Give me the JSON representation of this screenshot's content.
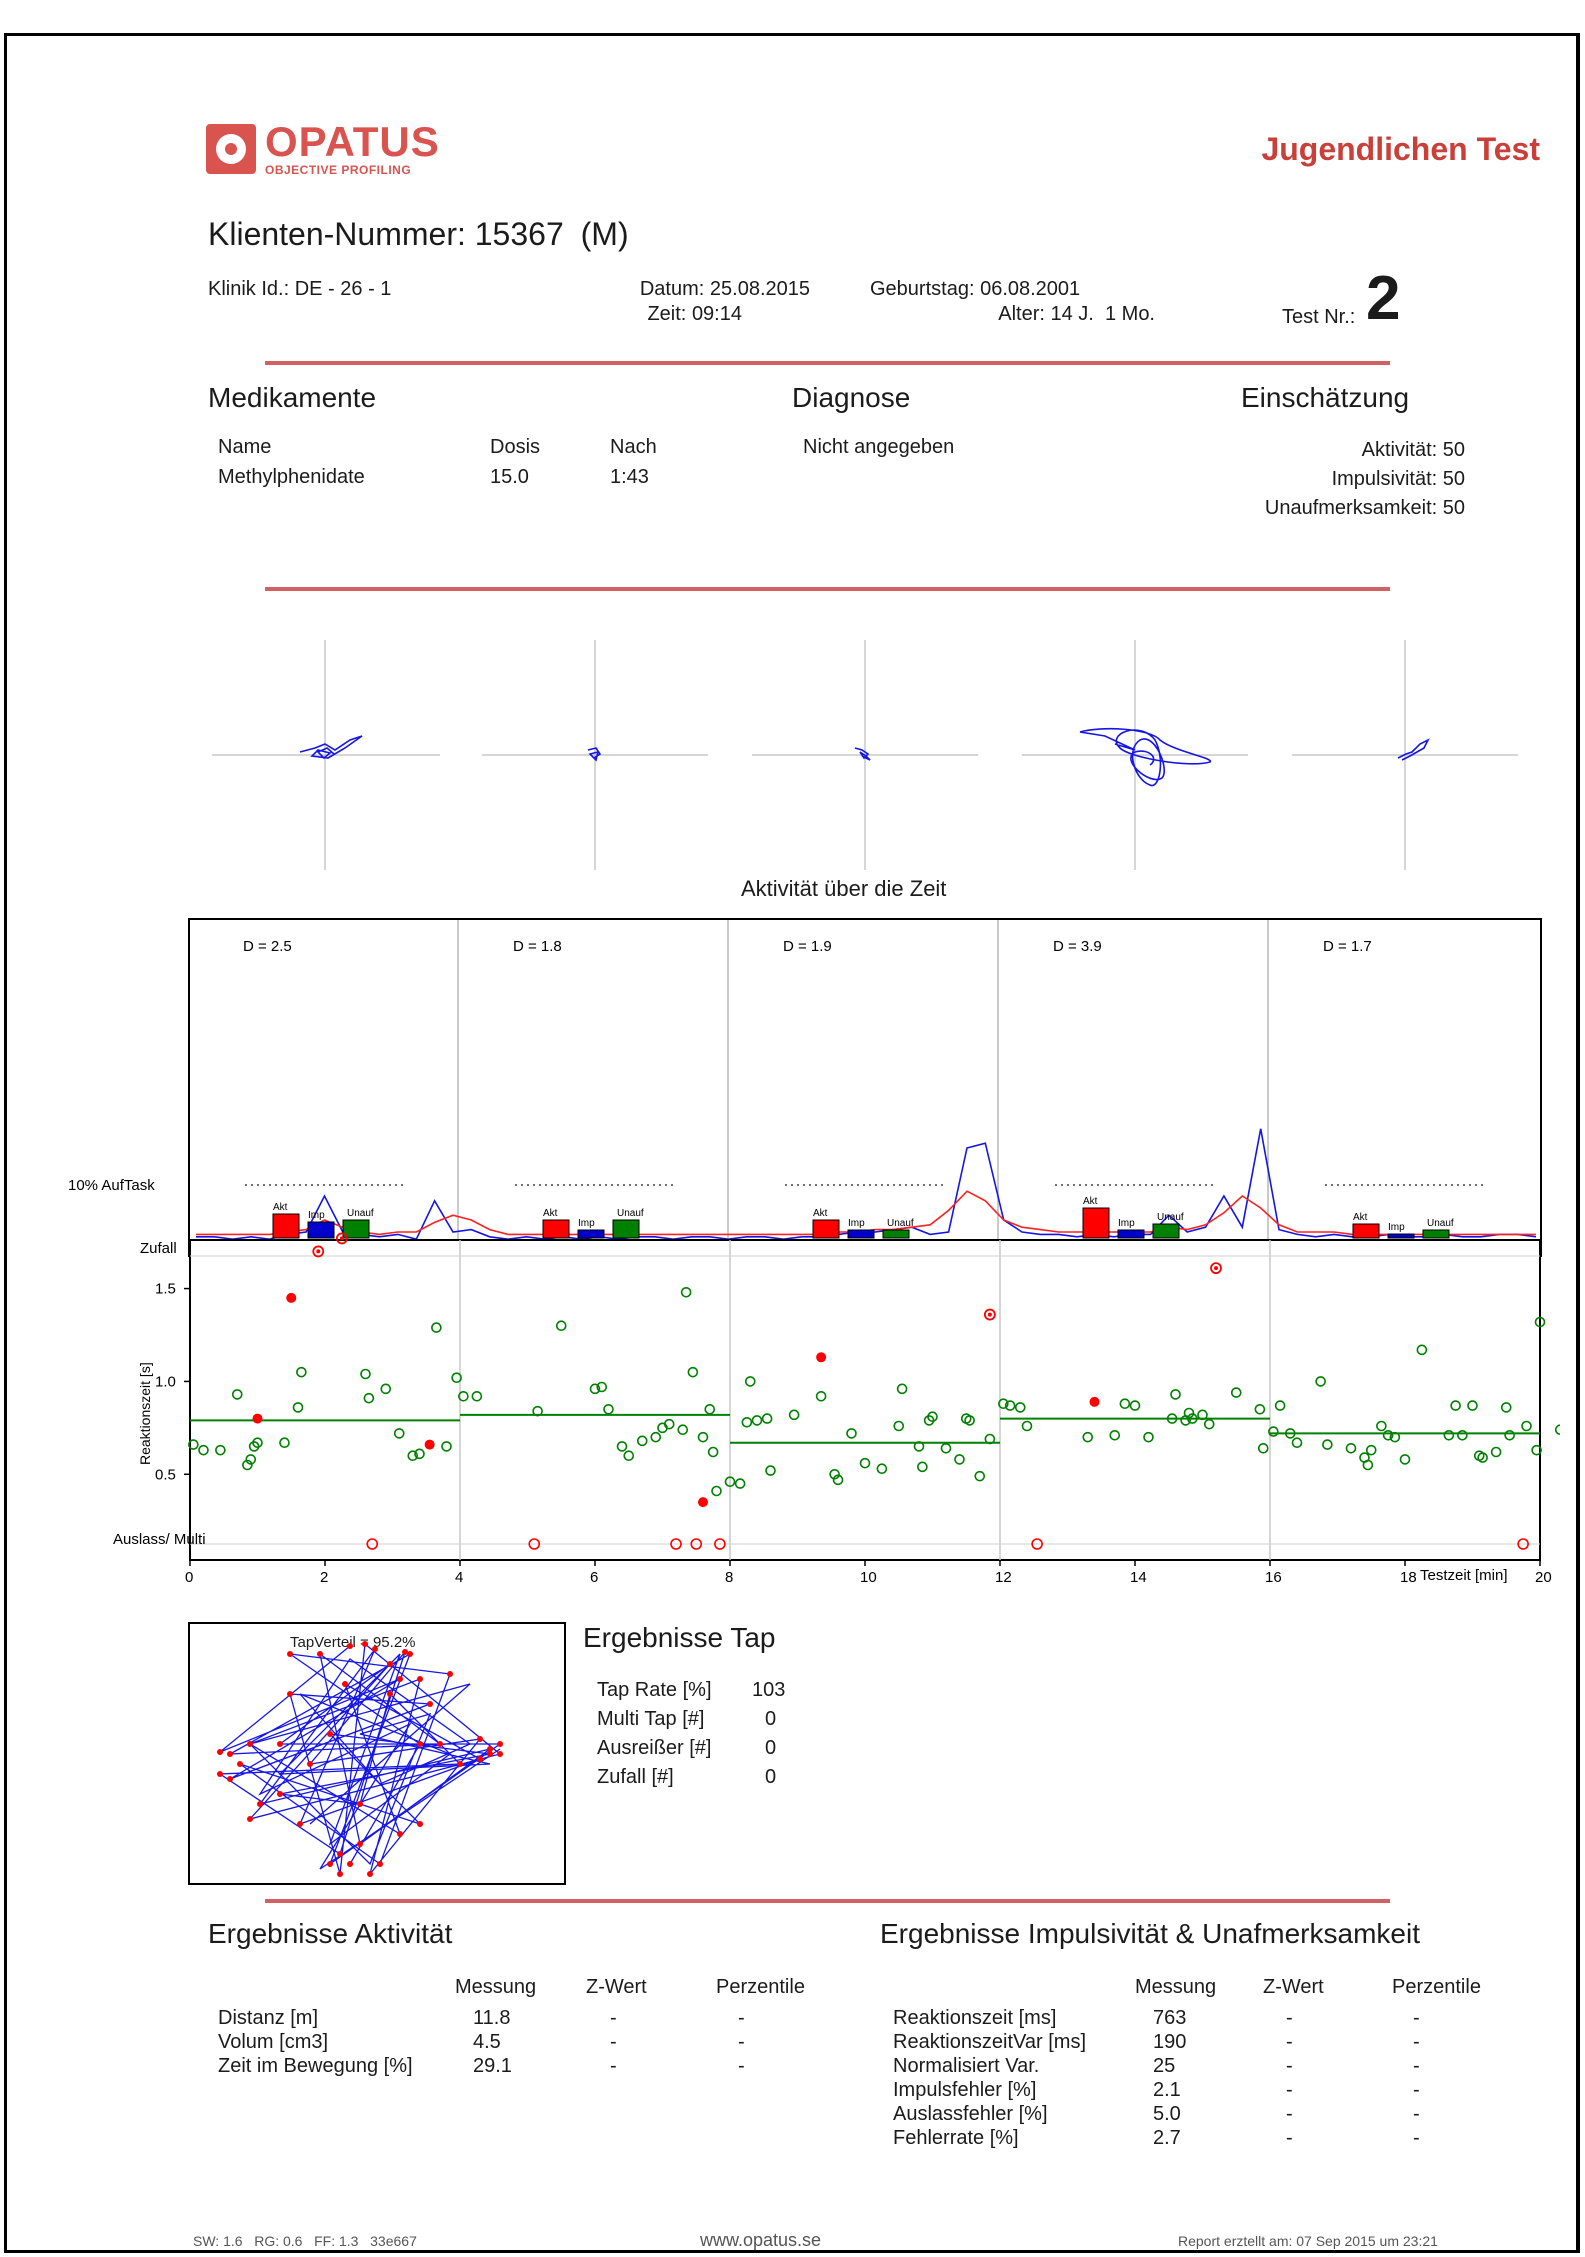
{
  "header": {
    "brand": "OPATUS",
    "brand_sub": "OBJECTIVE PROFILING",
    "report_title": "Jugendlichen Test"
  },
  "client": {
    "number_label": "Klienten-Nummer:",
    "number": "15367",
    "sex": "(M)",
    "clinic_label": "Klinik Id.:",
    "clinic_id": "DE - 26 - 1",
    "date_label": "Datum:",
    "date": "25.08.2015",
    "time_label": "Zeit:",
    "time": "09:14",
    "birthday_label": "Geburtstag:",
    "birthday": "06.08.2001",
    "age_label": "Alter:",
    "age": "14 J.  1 Mo.",
    "test_label": "Test Nr.:",
    "test_no": "2"
  },
  "medication": {
    "title": "Medikamente",
    "col_name": "Name",
    "col_dose": "Dosis",
    "col_after": "Nach",
    "name": "Methylphenidate",
    "dose": "15.0",
    "after": "1:43"
  },
  "diagnosis": {
    "title": "Diagnose",
    "value": "Nicht angegeben"
  },
  "assessment": {
    "title": "Einschätzung",
    "items": [
      {
        "label": "Aktivität:",
        "value": "50"
      },
      {
        "label": "Impulsivität:",
        "value": "50"
      },
      {
        "label": "Unaufmerksamkeit:",
        "value": "50"
      }
    ]
  },
  "activity_time": {
    "title": "Aktivität über die Zeit",
    "segments": [
      "D = 2.5",
      "D = 1.8",
      "D = 1.9",
      "D = 3.9",
      "D = 1.7"
    ]
  },
  "chart_data": [
    {
      "type": "line",
      "title": "Aktivität über die Zeit",
      "x_range": [
        0,
        20
      ],
      "series": [
        {
          "values": [
            0.03,
            0.03,
            0.02,
            0.03,
            0.02,
            0.04,
            0.05,
            0.2,
            0.05,
            0.04,
            0.03,
            0.04,
            0.02,
            0.18,
            0.05,
            0.06,
            0.03,
            0.02,
            0.03,
            0.02,
            0.03,
            0.02,
            0.03,
            0.02,
            0.03,
            0.03,
            0.02,
            0.03,
            0.03,
            0.02,
            0.03,
            0.03,
            0.02,
            0.03,
            0.03,
            0.04,
            0.05,
            0.05,
            0.06,
            0.07,
            0.04,
            0.05,
            0.4,
            0.42,
            0.1,
            0.05,
            0.04,
            0.04,
            0.03,
            0.04,
            0.03,
            0.04,
            0.04,
            0.12,
            0.05,
            0.07,
            0.2,
            0.07,
            0.48,
            0.06,
            0.04,
            0.03,
            0.04,
            0.03,
            0.03,
            0.04,
            0.03,
            0.03,
            0.04,
            0.03,
            0.03,
            0.04,
            0.04,
            0.03
          ]
        },
        {
          "values": [
            0.04,
            0.04,
            0.04,
            0.04,
            0.04,
            0.05,
            0.06,
            0.1,
            0.07,
            0.05,
            0.04,
            0.05,
            0.05,
            0.09,
            0.12,
            0.1,
            0.06,
            0.04,
            0.04,
            0.04,
            0.04,
            0.04,
            0.04,
            0.04,
            0.04,
            0.04,
            0.04,
            0.04,
            0.04,
            0.04,
            0.04,
            0.04,
            0.04,
            0.04,
            0.04,
            0.05,
            0.05,
            0.06,
            0.06,
            0.07,
            0.08,
            0.14,
            0.22,
            0.18,
            0.1,
            0.07,
            0.06,
            0.05,
            0.05,
            0.05,
            0.05,
            0.05,
            0.05,
            0.07,
            0.06,
            0.08,
            0.13,
            0.2,
            0.15,
            0.08,
            0.05,
            0.05,
            0.05,
            0.04,
            0.04,
            0.04,
            0.04,
            0.04,
            0.04,
            0.04,
            0.04,
            0.04,
            0.04,
            0.04
          ]
        }
      ]
    },
    {
      "type": "scatter",
      "xlabel": "Testzeit [min]",
      "ylabel": "Reaktionszeit [s]",
      "x_ticks": [
        "0",
        "2",
        "4",
        "6",
        "8",
        "10",
        "12",
        "14",
        "16",
        "18",
        "20"
      ],
      "y_ticks": [
        "0.5",
        "1.0",
        "1.5"
      ],
      "y_extra_labels": [
        "Zufall",
        "Auslass/ Multi"
      ],
      "top_label": "10% AufTask",
      "bar_labels": [
        "Akt",
        "Imp",
        "Unauf"
      ],
      "bars": [
        {
          "akt": 0.6,
          "imp": 0.4,
          "unauf": 0.45
        },
        {
          "akt": 0.45,
          "imp": 0.2,
          "unauf": 0.45
        },
        {
          "akt": 0.45,
          "imp": 0.2,
          "unauf": 0.2
        },
        {
          "akt": 0.75,
          "imp": 0.2,
          "unauf": 0.35
        },
        {
          "akt": 0.35,
          "imp": 0.0,
          "unauf": 0.2
        }
      ],
      "mean_lines": [
        {
          "x": [
            0,
            4
          ],
          "y": 0.79
        },
        {
          "x": [
            4,
            8
          ],
          "y": 0.82
        },
        {
          "x": [
            8,
            12
          ],
          "y": 0.67
        },
        {
          "x": [
            12,
            16
          ],
          "y": 0.8
        },
        {
          "x": [
            16,
            20
          ],
          "y": 0.72
        }
      ],
      "correct": [
        [
          0.05,
          0.66
        ],
        [
          0.2,
          0.63
        ],
        [
          0.45,
          0.63
        ],
        [
          0.7,
          0.93
        ],
        [
          0.85,
          0.55
        ],
        [
          0.9,
          0.58
        ],
        [
          0.95,
          0.65
        ],
        [
          1.0,
          0.67
        ],
        [
          1.4,
          0.67
        ],
        [
          1.6,
          0.86
        ],
        [
          1.65,
          1.05
        ],
        [
          2.6,
          1.04
        ],
        [
          2.65,
          0.91
        ],
        [
          2.9,
          0.96
        ],
        [
          3.1,
          0.72
        ],
        [
          3.3,
          0.6
        ],
        [
          3.4,
          0.61
        ],
        [
          3.65,
          1.29
        ],
        [
          3.8,
          0.65
        ],
        [
          3.95,
          1.02
        ],
        [
          4.05,
          0.92
        ],
        [
          4.25,
          0.92
        ],
        [
          5.15,
          0.84
        ],
        [
          5.5,
          1.3
        ],
        [
          6.0,
          0.96
        ],
        [
          6.1,
          0.97
        ],
        [
          6.2,
          0.85
        ],
        [
          6.4,
          0.65
        ],
        [
          6.5,
          0.6
        ],
        [
          6.7,
          0.68
        ],
        [
          6.9,
          0.7
        ],
        [
          7.0,
          0.75
        ],
        [
          7.1,
          0.77
        ],
        [
          7.3,
          0.74
        ],
        [
          7.35,
          1.48
        ],
        [
          7.45,
          1.05
        ],
        [
          7.6,
          0.7
        ],
        [
          7.7,
          0.85
        ],
        [
          7.75,
          0.62
        ],
        [
          7.8,
          0.41
        ],
        [
          8.0,
          0.46
        ],
        [
          8.15,
          0.45
        ],
        [
          8.25,
          0.78
        ],
        [
          8.3,
          1.0
        ],
        [
          8.4,
          0.79
        ],
        [
          8.55,
          0.8
        ],
        [
          8.6,
          0.52
        ],
        [
          8.95,
          0.82
        ],
        [
          9.35,
          0.92
        ],
        [
          9.55,
          0.5
        ],
        [
          9.6,
          0.47
        ],
        [
          9.8,
          0.72
        ],
        [
          10.0,
          0.56
        ],
        [
          10.25,
          0.53
        ],
        [
          10.5,
          0.76
        ],
        [
          10.55,
          0.96
        ],
        [
          10.8,
          0.65
        ],
        [
          10.85,
          0.54
        ],
        [
          10.95,
          0.79
        ],
        [
          11.0,
          0.81
        ],
        [
          11.2,
          0.64
        ],
        [
          11.4,
          0.58
        ],
        [
          11.5,
          0.8
        ],
        [
          11.55,
          0.79
        ],
        [
          11.7,
          0.49
        ],
        [
          11.85,
          0.69
        ],
        [
          12.05,
          0.88
        ],
        [
          12.15,
          0.87
        ],
        [
          12.3,
          0.86
        ],
        [
          12.4,
          0.76
        ],
        [
          13.3,
          0.7
        ],
        [
          13.7,
          0.71
        ],
        [
          13.85,
          0.88
        ],
        [
          14.0,
          0.87
        ],
        [
          14.2,
          0.7
        ],
        [
          14.55,
          0.8
        ],
        [
          14.6,
          0.93
        ],
        [
          14.75,
          0.79
        ],
        [
          14.8,
          0.83
        ],
        [
          14.85,
          0.8
        ],
        [
          15.0,
          0.82
        ],
        [
          15.1,
          0.77
        ],
        [
          15.5,
          0.94
        ],
        [
          15.85,
          0.85
        ],
        [
          15.9,
          0.64
        ],
        [
          16.05,
          0.73
        ],
        [
          16.15,
          0.87
        ],
        [
          16.3,
          0.72
        ],
        [
          16.4,
          0.67
        ],
        [
          16.75,
          1.0
        ],
        [
          16.85,
          0.66
        ],
        [
          17.2,
          0.64
        ],
        [
          17.4,
          0.59
        ],
        [
          17.45,
          0.55
        ],
        [
          17.5,
          0.63
        ],
        [
          17.65,
          0.76
        ],
        [
          17.75,
          0.71
        ],
        [
          17.85,
          0.7
        ],
        [
          18.0,
          0.58
        ],
        [
          18.25,
          1.17
        ],
        [
          18.65,
          0.71
        ],
        [
          18.75,
          0.87
        ],
        [
          18.85,
          0.71
        ],
        [
          19.0,
          0.87
        ],
        [
          19.1,
          0.6
        ],
        [
          19.15,
          0.59
        ],
        [
          19.35,
          0.62
        ],
        [
          19.5,
          0.86
        ],
        [
          19.55,
          0.71
        ],
        [
          19.8,
          0.76
        ],
        [
          19.95,
          0.63
        ],
        [
          20.0,
          1.32
        ],
        [
          20.3,
          0.74
        ],
        [
          20.5,
          0.48
        ]
      ],
      "impulse_errors": [
        [
          1.0,
          0.8
        ],
        [
          1.5,
          1.45
        ],
        [
          3.55,
          0.66
        ],
        [
          7.6,
          0.35
        ],
        [
          9.35,
          1.13
        ],
        [
          13.4,
          0.89
        ]
      ],
      "zufall_points": [
        1.9,
        2.25,
        11.85,
        15.2
      ],
      "zufall_values": [
        1.7,
        1.77,
        1.36,
        1.61
      ],
      "omission_points": [
        2.7,
        5.1,
        7.2,
        7.5,
        7.85,
        12.55,
        19.75
      ]
    }
  ],
  "tap": {
    "scatter_title": "TapVerteil = 95.2%",
    "title": "Ergebnisse Tap",
    "rows": [
      {
        "label": "Tap Rate [%]",
        "value": "103"
      },
      {
        "label": "Multi Tap [#]",
        "value": "0"
      },
      {
        "label": "Ausreißer [#]",
        "value": "0"
      },
      {
        "label": "Zufall [#]",
        "value": "0"
      }
    ]
  },
  "activity_results": {
    "title": "Ergebnisse Aktivität",
    "cols": [
      "Messung",
      "Z-Wert",
      "Perzentile"
    ],
    "rows": [
      {
        "label": "Distanz [m]",
        "m": "11.8",
        "z": "-",
        "p": "-"
      },
      {
        "label": "Volum [cm3]",
        "m": "4.5",
        "z": "-",
        "p": "-"
      },
      {
        "label": "Zeit im Bewegung [%]",
        "m": "29.1",
        "z": "-",
        "p": "-"
      }
    ]
  },
  "impulse_results": {
    "title": "Ergebnisse Impulsivität & Unafmerksamkeit",
    "cols": [
      "Messung",
      "Z-Wert",
      "Perzentile"
    ],
    "rows": [
      {
        "label": "Reaktionszeit [ms]",
        "m": "763",
        "z": "-",
        "p": "-"
      },
      {
        "label": "ReaktionszeitVar [ms]",
        "m": "190",
        "z": "-",
        "p": "-"
      },
      {
        "label": "Normalisiert Var.",
        "m": "25",
        "z": "-",
        "p": "-"
      },
      {
        "label": "Impulsfehler [%]",
        "m": "2.1",
        "z": "-",
        "p": "-"
      },
      {
        "label": "Auslassfehler [%]",
        "m": "5.0",
        "z": "-",
        "p": "-"
      },
      {
        "label": "Fehlerrate [%]",
        "m": "2.7",
        "z": "-",
        "p": "-"
      }
    ]
  },
  "footer": {
    "left": "SW: 1.6   RG: 0.6   FF: 1.3   33e667",
    "center": "www.opatus.se",
    "right": "Report erztellt am: 07 Sep 2015 um 23:21"
  },
  "colors": {
    "brand": "#d9534f",
    "rule": "#d26161",
    "akt": "#ff0000",
    "imp": "#0000cc",
    "unauf": "#008000"
  }
}
